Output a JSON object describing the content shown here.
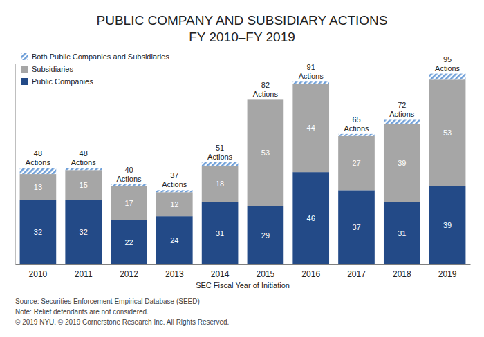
{
  "chart_data": {
    "type": "bar",
    "title": "PUBLIC COMPANY AND SUBSIDIARY ACTIONS",
    "subtitle": "FY 2010–FY 2019",
    "x_label": "SEC Fiscal Year of Initiation",
    "categories": [
      "2010",
      "2011",
      "2012",
      "2013",
      "2014",
      "2015",
      "2016",
      "2017",
      "2018",
      "2019"
    ],
    "stacked": true,
    "legend": "top-left",
    "tick_labels": "x",
    "grid": false,
    "ylim": [
      0,
      100
    ],
    "series": [
      {
        "name": "Public Companies",
        "color": "#234a87",
        "data_labels": true,
        "values": [
          32,
          32,
          22,
          24,
          31,
          29,
          46,
          37,
          31,
          39
        ]
      },
      {
        "name": "Subsidiaries",
        "color": "#a6a6a6",
        "data_labels": true,
        "values": [
          13,
          15,
          17,
          12,
          18,
          53,
          44,
          27,
          39,
          53
        ]
      },
      {
        "name": "Both Public Companies and Subsidiaries",
        "color": "#6f9fd8",
        "data_labels": false,
        "values": [
          3,
          1,
          1,
          1,
          2,
          0,
          1,
          1,
          2,
          3
        ]
      }
    ],
    "totals": {
      "values": [
        48,
        48,
        40,
        37,
        51,
        82,
        91,
        65,
        72,
        95
      ],
      "value_labels": [
        "48 Actions",
        "48 Actions",
        "40 Actions",
        "37 Actions",
        "51 Actions",
        "82 Actions",
        "91 Actions",
        "65 Actions",
        "72 Actions",
        "95 Actions"
      ]
    },
    "notes": [
      "Source: Securities Enforcement Empirical Database (SEED)",
      "Note: Relief defendants are not considered.",
      "© 2019 NYU. © 2019 Cornerstone Research Inc. All Rights Reserved."
    ]
  }
}
